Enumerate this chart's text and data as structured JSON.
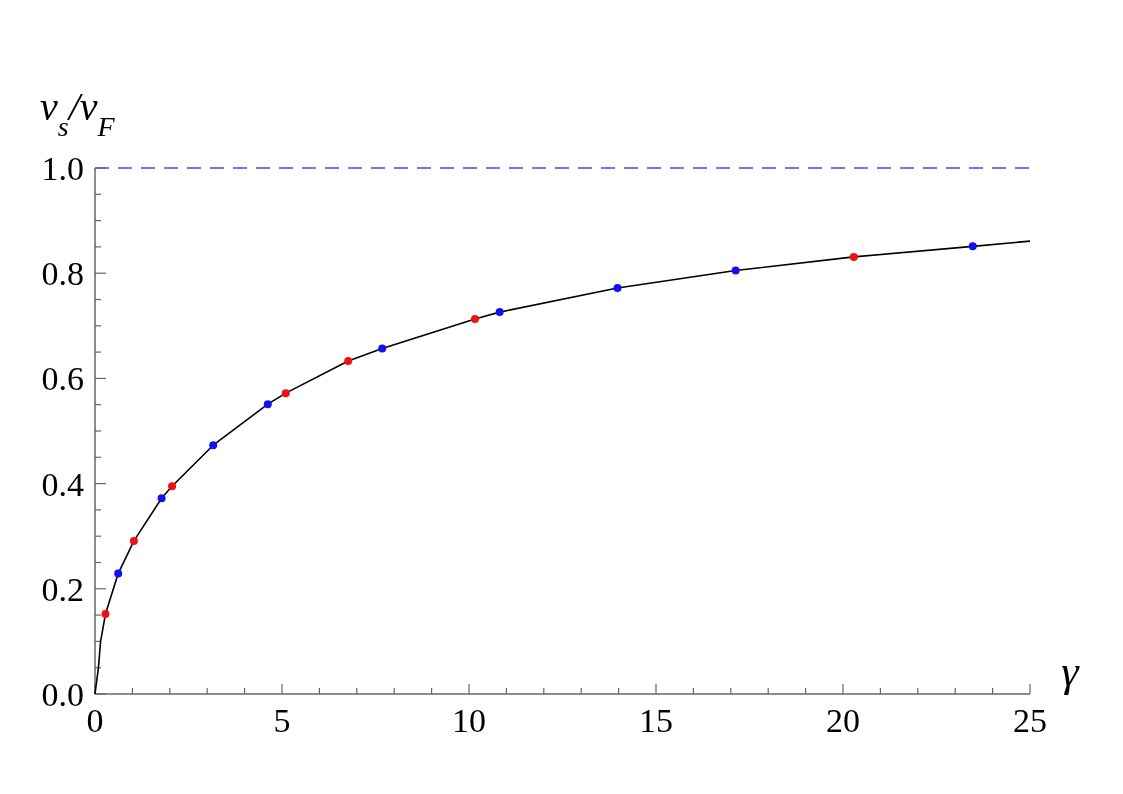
{
  "chart_data": {
    "type": "line",
    "xlabel": "γ",
    "ylabel": "v$_{s}$/v$_{F}$",
    "xlim": [
      0,
      25
    ],
    "ylim": [
      0,
      1
    ],
    "xticks": [
      0,
      {
        "value": 1,
        "label": null
      },
      {
        "value": 2,
        "label": null
      },
      {
        "value": 3,
        "label": null
      },
      {
        "value": 4,
        "label": null
      },
      5,
      {
        "value": 6,
        "label": null
      },
      {
        "value": 7,
        "label": null
      },
      {
        "value": 8,
        "label": null
      },
      {
        "value": 9,
        "label": null
      },
      10,
      {
        "value": 11,
        "label": null
      },
      {
        "value": 12,
        "label": null
      },
      {
        "value": 13,
        "label": null
      },
      {
        "value": 14,
        "label": null
      },
      15,
      {
        "value": 16,
        "label": null
      },
      {
        "value": 17,
        "label": null
      },
      {
        "value": 18,
        "label": null
      },
      {
        "value": 19,
        "label": null
      },
      20,
      {
        "value": 21,
        "label": null
      },
      {
        "value": 22,
        "label": null
      },
      {
        "value": 23,
        "label": null
      },
      {
        "value": 24,
        "label": null
      },
      25
    ],
    "yticks": [
      {
        "value": 0,
        "label": "0.0"
      },
      {
        "value": 0.05,
        "label": null
      },
      {
        "value": 0.1,
        "label": null
      },
      {
        "value": 0.15,
        "label": null
      },
      0.2,
      {
        "value": 0.25,
        "label": null
      },
      {
        "value": 0.3,
        "label": null
      },
      {
        "value": 0.35,
        "label": null
      },
      0.4,
      {
        "value": 0.45,
        "label": null
      },
      {
        "value": 0.5,
        "label": null
      },
      {
        "value": 0.55,
        "label": null
      },
      0.6,
      {
        "value": 0.65,
        "label": null
      },
      {
        "value": 0.7,
        "label": null
      },
      {
        "value": 0.75,
        "label": null
      },
      0.8,
      {
        "value": 0.85,
        "label": null
      },
      {
        "value": 0.9,
        "label": null
      },
      {
        "value": 0.95,
        "label": null
      },
      {
        "value": 1,
        "label": "1.0"
      }
    ],
    "grid": false,
    "ref_lines": [
      {
        "axis": "y",
        "value": 1,
        "color": "#4a4aee",
        "line_style": "dashed"
      }
    ],
    "series": [
      {
        "color": "#000000",
        "marker": "none",
        "line_style": "solid",
        "x": [
          0,
          0.09,
          0.15,
          0.28,
          0.62,
          1.04,
          1.78,
          2.06,
          3.16,
          4.62,
          5.1,
          6.77,
          7.68,
          10.16,
          10.82,
          13.97,
          17.13,
          20.29,
          23.47,
          25
        ],
        "values": [
          0,
          0.049,
          0.1,
          0.152,
          0.229,
          0.291,
          0.372,
          0.395,
          0.473,
          0.551,
          0.572,
          0.633,
          0.657,
          0.713,
          0.726,
          0.772,
          0.805,
          0.831,
          0.851,
          0.861
        ]
      },
      {
        "type": "scatter",
        "color": "#ee1111",
        "marker": "circle",
        "x": [
          0.28,
          1.04,
          2.06,
          5.1,
          6.77,
          10.16,
          20.29
        ],
        "values": [
          0.152,
          0.291,
          0.395,
          0.572,
          0.633,
          0.713,
          0.831
        ]
      },
      {
        "type": "scatter",
        "color": "#1111ee",
        "marker": "circle",
        "x": [
          0.62,
          1.78,
          3.16,
          4.62,
          7.68,
          10.82,
          13.97,
          17.13,
          23.47
        ],
        "values": [
          0.229,
          0.372,
          0.473,
          0.551,
          0.657,
          0.726,
          0.772,
          0.805,
          0.851
        ]
      }
    ]
  }
}
